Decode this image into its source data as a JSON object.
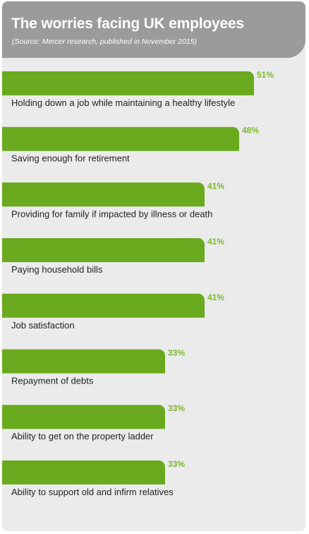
{
  "header": {
    "title": "The worries facing UK employees",
    "subtitle": "(Source: Mercer research, published in November 2015)"
  },
  "colors": {
    "bar": "#6aaa1e",
    "value_label": "#7cb82f",
    "category_label": "#222222",
    "card_background": "#ebebeb",
    "header_background": "#9b9b9b"
  },
  "chart_data": {
    "type": "bar",
    "orientation": "horizontal",
    "title": "The worries facing UK employees",
    "subtitle": "(Source: Mercer research, published in November 2015)",
    "categories": [
      "Holding down a job while maintaining a healthy lifestyle",
      "Saving enough for retirement",
      "Providing for family if impacted by illness or death",
      "Paying household bills",
      "Job satisfaction",
      "Repayment of debts",
      "Ability to get on the property ladder",
      "Ability to support old and infirm relatives"
    ],
    "values": [
      51,
      48,
      41,
      41,
      41,
      33,
      33,
      33
    ],
    "value_labels": [
      "51%",
      "48%",
      "41%",
      "41%",
      "41%",
      "33%",
      "33%",
      "33%"
    ],
    "unit": "%",
    "xlim": [
      0,
      100
    ]
  }
}
